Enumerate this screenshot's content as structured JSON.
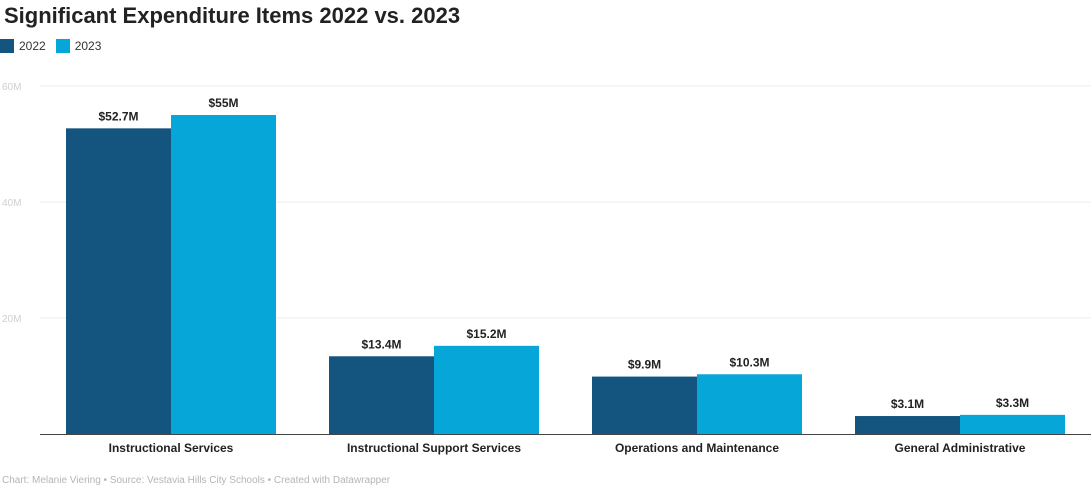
{
  "chart_data": {
    "type": "bar",
    "title": "Significant Expenditure Items 2022 vs. 2023",
    "categories": [
      "Instructional Services",
      "Instructional Support Services",
      "Operations and Maintenance",
      "General Administrative"
    ],
    "series": [
      {
        "name": "2022",
        "color": "#14557f",
        "values": [
          52.7,
          13.4,
          9.9,
          3.1
        ],
        "labels": [
          "$52.7M",
          "$13.4M",
          "$9.9M",
          "$3.1M"
        ]
      },
      {
        "name": "2023",
        "color": "#07a6d8",
        "values": [
          55,
          15.2,
          10.3,
          3.3
        ],
        "labels": [
          "$55M",
          "$15.2M",
          "$10.3M",
          "$3.3M"
        ]
      }
    ],
    "yticks": [
      {
        "value": 20,
        "label": "20M"
      },
      {
        "value": 40,
        "label": "40M"
      },
      {
        "value": 60,
        "label": "60M"
      }
    ],
    "ylim": [
      0,
      60
    ],
    "xlabel": "",
    "ylabel": "",
    "grid": true,
    "legend_position": "top-left"
  },
  "footer": "Chart: Melanie Viering • Source: Vestavia Hills City Schools • Created with Datawrapper"
}
